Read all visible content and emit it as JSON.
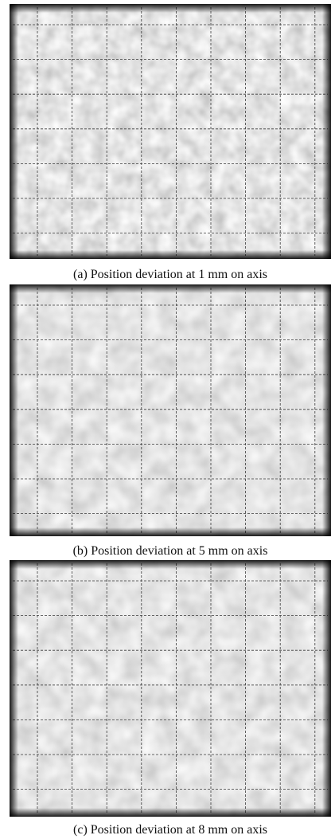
{
  "figure": {
    "panels": [
      {
        "caption": "(a) Position deviation at 1 mm on axis"
      },
      {
        "caption": "(b) Position deviation at 5 mm on axis"
      },
      {
        "caption": "(c) Position deviation at 8 mm on axis"
      }
    ]
  }
}
